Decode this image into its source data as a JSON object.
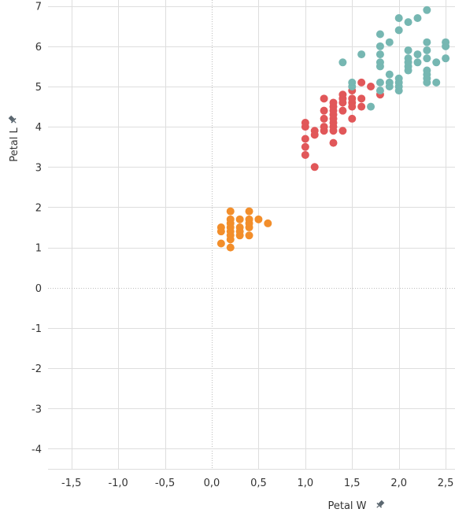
{
  "chart_data": {
    "type": "scatter",
    "xlabel": "Petal W",
    "ylabel": "Petal L",
    "xlim": [
      -1.75,
      2.6
    ],
    "ylim": [
      -4.5,
      7.15
    ],
    "xticks": [
      -1.5,
      -1.0,
      -0.5,
      0.0,
      0.5,
      1.0,
      1.5,
      2.0,
      2.5
    ],
    "xtick_labels": [
      "-1,5",
      "-1,0",
      "-0,5",
      "0,0",
      "0,5",
      "1,0",
      "1,5",
      "2,0",
      "2,5"
    ],
    "yticks": [
      -4,
      -3,
      -2,
      -1,
      0,
      1,
      2,
      3,
      4,
      5,
      6,
      7
    ],
    "ytick_labels": [
      "-4",
      "-3",
      "-2",
      "-1",
      "0",
      "1",
      "2",
      "3",
      "4",
      "5",
      "6",
      "7"
    ],
    "grid": true,
    "legend": "none",
    "series": [
      {
        "color": "#f28e2b",
        "points": [
          [
            0.1,
            1.1
          ],
          [
            0.1,
            1.4
          ],
          [
            0.1,
            1.5
          ],
          [
            0.2,
            1.0
          ],
          [
            0.2,
            1.2
          ],
          [
            0.2,
            1.3
          ],
          [
            0.2,
            1.4
          ],
          [
            0.2,
            1.5
          ],
          [
            0.2,
            1.6
          ],
          [
            0.2,
            1.7
          ],
          [
            0.2,
            1.9
          ],
          [
            0.3,
            1.3
          ],
          [
            0.3,
            1.4
          ],
          [
            0.3,
            1.5
          ],
          [
            0.3,
            1.7
          ],
          [
            0.4,
            1.3
          ],
          [
            0.4,
            1.5
          ],
          [
            0.4,
            1.6
          ],
          [
            0.4,
            1.7
          ],
          [
            0.4,
            1.9
          ],
          [
            0.5,
            1.7
          ],
          [
            0.6,
            1.6
          ]
        ]
      },
      {
        "color": "#e15759",
        "points": [
          [
            1.0,
            3.3
          ],
          [
            1.0,
            3.5
          ],
          [
            1.0,
            3.7
          ],
          [
            1.0,
            4.0
          ],
          [
            1.0,
            4.1
          ],
          [
            1.1,
            3.0
          ],
          [
            1.1,
            3.8
          ],
          [
            1.1,
            3.9
          ],
          [
            1.2,
            3.9
          ],
          [
            1.2,
            4.0
          ],
          [
            1.2,
            4.2
          ],
          [
            1.2,
            4.4
          ],
          [
            1.2,
            4.7
          ],
          [
            1.3,
            3.6
          ],
          [
            1.3,
            3.9
          ],
          [
            1.3,
            4.0
          ],
          [
            1.3,
            4.1
          ],
          [
            1.3,
            4.2
          ],
          [
            1.3,
            4.3
          ],
          [
            1.3,
            4.4
          ],
          [
            1.3,
            4.5
          ],
          [
            1.3,
            4.6
          ],
          [
            1.4,
            3.9
          ],
          [
            1.4,
            4.4
          ],
          [
            1.4,
            4.6
          ],
          [
            1.4,
            4.7
          ],
          [
            1.4,
            4.8
          ],
          [
            1.5,
            4.2
          ],
          [
            1.5,
            4.5
          ],
          [
            1.5,
            4.6
          ],
          [
            1.5,
            4.7
          ],
          [
            1.5,
            4.9
          ],
          [
            1.6,
            4.5
          ],
          [
            1.6,
            4.7
          ],
          [
            1.6,
            5.1
          ],
          [
            1.7,
            5.0
          ],
          [
            1.8,
            4.8
          ]
        ]
      },
      {
        "color": "#76b7b2",
        "points": [
          [
            1.4,
            5.6
          ],
          [
            1.5,
            5.0
          ],
          [
            1.5,
            5.1
          ],
          [
            1.6,
            5.8
          ],
          [
            1.7,
            4.5
          ],
          [
            1.8,
            4.9
          ],
          [
            1.8,
            5.1
          ],
          [
            1.8,
            5.5
          ],
          [
            1.8,
            5.6
          ],
          [
            1.8,
            5.8
          ],
          [
            1.8,
            6.0
          ],
          [
            1.8,
            6.3
          ],
          [
            1.9,
            5.0
          ],
          [
            1.9,
            5.1
          ],
          [
            1.9,
            5.3
          ],
          [
            1.9,
            6.1
          ],
          [
            2.0,
            4.9
          ],
          [
            2.0,
            5.0
          ],
          [
            2.0,
            5.1
          ],
          [
            2.0,
            5.2
          ],
          [
            2.0,
            6.4
          ],
          [
            2.0,
            6.7
          ],
          [
            2.1,
            5.4
          ],
          [
            2.1,
            5.5
          ],
          [
            2.1,
            5.6
          ],
          [
            2.1,
            5.7
          ],
          [
            2.1,
            5.9
          ],
          [
            2.1,
            6.6
          ],
          [
            2.2,
            5.6
          ],
          [
            2.2,
            5.8
          ],
          [
            2.2,
            6.7
          ],
          [
            2.3,
            5.1
          ],
          [
            2.3,
            5.2
          ],
          [
            2.3,
            5.3
          ],
          [
            2.3,
            5.4
          ],
          [
            2.3,
            5.7
          ],
          [
            2.3,
            5.9
          ],
          [
            2.3,
            6.1
          ],
          [
            2.3,
            6.9
          ],
          [
            2.4,
            5.1
          ],
          [
            2.4,
            5.6
          ],
          [
            2.5,
            5.7
          ],
          [
            2.5,
            6.0
          ],
          [
            2.5,
            6.1
          ]
        ]
      }
    ]
  }
}
